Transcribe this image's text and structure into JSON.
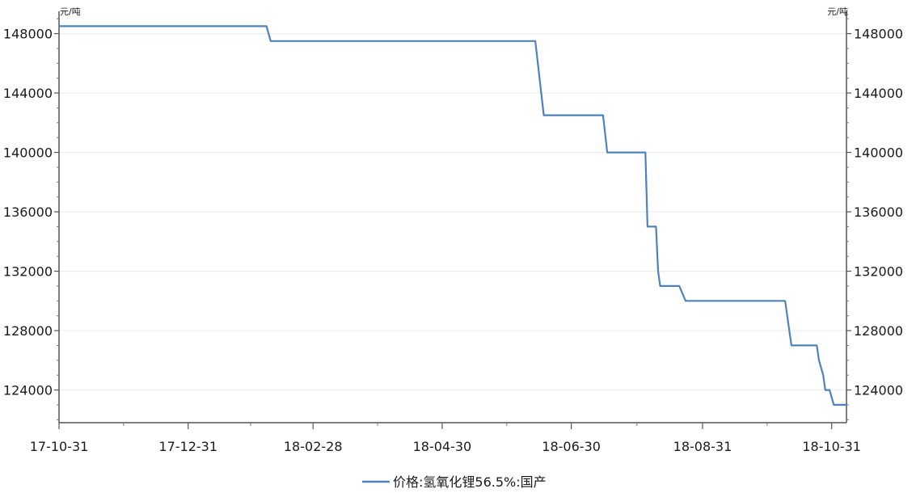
{
  "chart_data": {
    "type": "line",
    "title": "",
    "xlabel": "",
    "ylabel_left": "元/吨",
    "ylabel_right": "元/吨",
    "x_range": [
      "2017-10-31",
      "2018-11-07"
    ],
    "x_ticks": [
      "17-10-31",
      "17-12-31",
      "18-02-28",
      "18-04-30",
      "18-06-30",
      "18-08-31",
      "18-10-31"
    ],
    "ylim": [
      121800,
      149500
    ],
    "y_ticks": [
      148000,
      144000,
      140000,
      136000,
      132000,
      128000,
      124000
    ],
    "y_tick_labels": [
      "148000",
      "144000",
      "140000",
      "136000",
      "132000",
      "128000",
      "124000"
    ],
    "grid": true,
    "legend_position": "bottom-center",
    "series": [
      {
        "name": "价格:氢氧化锂56.5%:国产",
        "color": "#4f81bd",
        "points": [
          [
            "2017-10-31",
            148500
          ],
          [
            "2018-02-06",
            148500
          ],
          [
            "2018-02-08",
            147500
          ],
          [
            "2018-06-13",
            147500
          ],
          [
            "2018-06-17",
            142500
          ],
          [
            "2018-07-15",
            142500
          ],
          [
            "2018-07-17",
            140000
          ],
          [
            "2018-08-04",
            140000
          ],
          [
            "2018-08-05",
            135000
          ],
          [
            "2018-08-09",
            135000
          ],
          [
            "2018-08-10",
            132000
          ],
          [
            "2018-08-11",
            131000
          ],
          [
            "2018-08-20",
            131000
          ],
          [
            "2018-08-23",
            130000
          ],
          [
            "2018-10-09",
            130000
          ],
          [
            "2018-10-12",
            127000
          ],
          [
            "2018-10-24",
            127000
          ],
          [
            "2018-10-25",
            126000
          ],
          [
            "2018-10-27",
            125000
          ],
          [
            "2018-10-28",
            124000
          ],
          [
            "2018-10-30",
            124000
          ],
          [
            "2018-11-01",
            123000
          ],
          [
            "2018-11-07",
            123000
          ]
        ]
      }
    ]
  }
}
